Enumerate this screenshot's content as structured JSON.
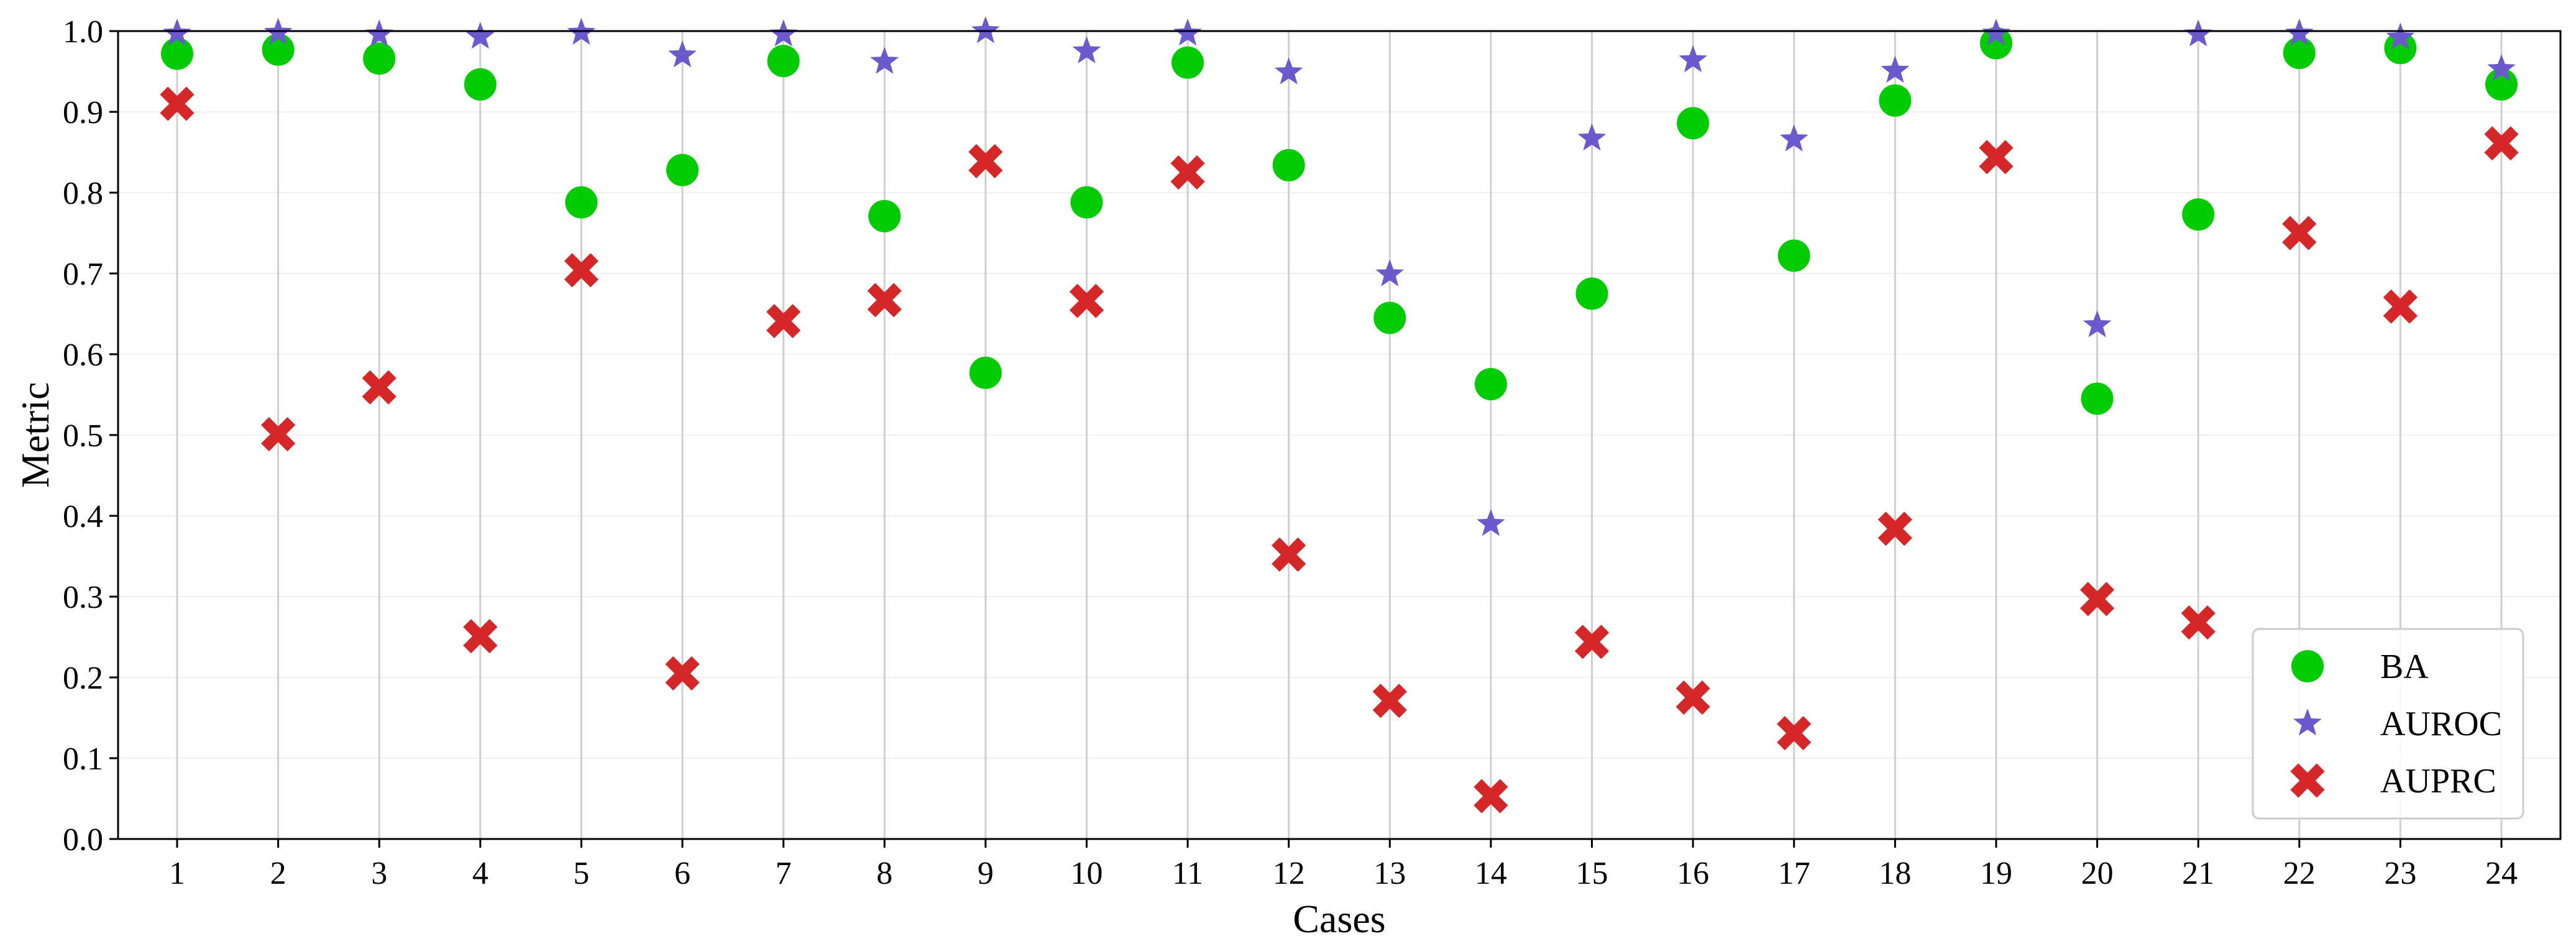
{
  "chart_data": {
    "type": "scatter",
    "title": "",
    "xlabel": "Cases",
    "ylabel": "Metric",
    "categories": [
      "1",
      "2",
      "3",
      "4",
      "5",
      "6",
      "7",
      "8",
      "9",
      "10",
      "11",
      "12",
      "13",
      "14",
      "15",
      "16",
      "17",
      "18",
      "19",
      "20",
      "21",
      "22",
      "23",
      "24"
    ],
    "ylim": [
      0.0,
      1.0
    ],
    "yticks": [
      "0.0",
      "0.1",
      "0.2",
      "0.3",
      "0.4",
      "0.5",
      "0.6",
      "0.7",
      "0.8",
      "0.9",
      "1.0"
    ],
    "grid": "vertical lines at each case; faint horizontal lines",
    "legend_position": "bottom-right",
    "series": [
      {
        "name": "BA",
        "marker": "circle",
        "color": "#00cc00",
        "values": [
          0.972,
          0.977,
          0.966,
          0.934,
          0.788,
          0.828,
          0.963,
          0.771,
          0.577,
          0.788,
          0.961,
          0.834,
          0.645,
          0.563,
          0.675,
          0.886,
          0.722,
          0.914,
          0.985,
          0.545,
          0.773,
          0.973,
          0.979,
          0.934
        ]
      },
      {
        "name": "AUROC",
        "marker": "star",
        "color": "#6a5acd",
        "values": [
          0.997,
          0.998,
          0.996,
          0.993,
          0.998,
          0.97,
          0.996,
          0.962,
          1.0,
          0.975,
          0.997,
          0.949,
          0.699,
          0.39,
          0.867,
          0.964,
          0.866,
          0.951,
          0.997,
          0.636,
          0.996,
          0.997,
          0.992,
          0.953
        ]
      },
      {
        "name": "AUPRC",
        "marker": "x",
        "color": "#d62728",
        "values": [
          0.91,
          0.501,
          0.559,
          0.251,
          0.704,
          0.205,
          0.641,
          0.667,
          0.839,
          0.666,
          0.825,
          0.352,
          0.171,
          0.053,
          0.244,
          0.175,
          0.131,
          0.384,
          0.844,
          0.297,
          0.268,
          0.75,
          0.659,
          0.861
        ]
      }
    ]
  }
}
